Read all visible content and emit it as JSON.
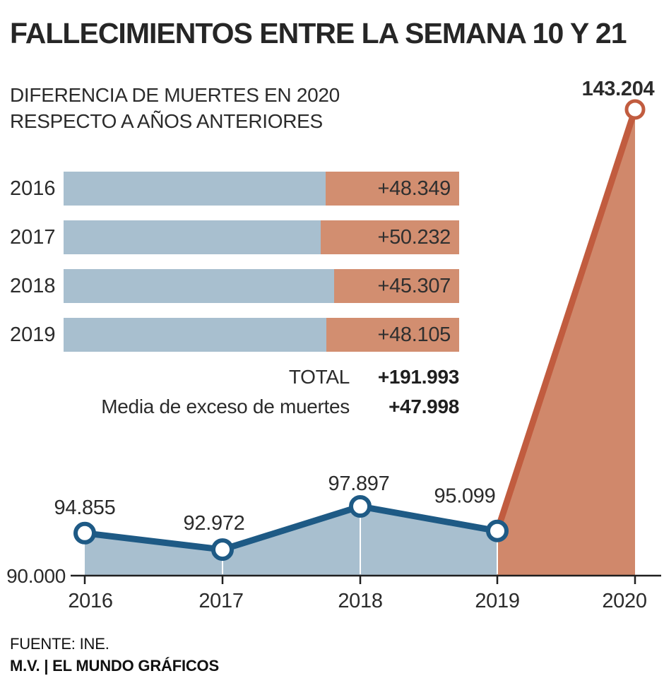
{
  "page": {
    "title": "FALLECIMIENTOS ENTRE LA SEMANA 10 Y 21",
    "subtitle_line1": "DIFERENCIA DE MUERTES EN 2020",
    "subtitle_line2": "RESPECTO A AÑOS ANTERIORES",
    "footer_source": "FUENTE: INE.",
    "footer_credit": "M.V. | EL MUNDO GRÁFICOS"
  },
  "summary": {
    "total_label": "TOTAL",
    "total_value": "+191.993",
    "mean_label": "Media de exceso de muertes",
    "mean_value": "+47.998"
  },
  "colors": {
    "blue_fill": "#a8bfcf",
    "orange_fill_bar": "#d28e70",
    "orange_fill_area": "#d0886b",
    "blue_line": "#1e5a85",
    "orange_line": "#c15c3f",
    "axis": "#1f1f1f",
    "text_dark": "#2b2b2b",
    "white": "#ffffff"
  },
  "chart_data": [
    {
      "type": "bar",
      "subtype": "stacked-horizontal",
      "title": "DIFERENCIA DE MUERTES EN 2020 RESPECTO A AÑOS ANTERIORES",
      "categories": [
        "2016",
        "2017",
        "2018",
        "2019"
      ],
      "series": [
        {
          "name": "muertes-del-año",
          "values": [
            94855,
            92972,
            97897,
            95099
          ],
          "color": "#a8bfcf"
        },
        {
          "name": "exceso-de-muertes-2020",
          "values": [
            48349,
            50232,
            45307,
            48105
          ],
          "labels": [
            "+48.349",
            "+50.232",
            "+45.307",
            "+48.105"
          ],
          "color": "#d28e70"
        }
      ],
      "x_max": 143204,
      "total_label": "TOTAL",
      "total_value": "+191.993",
      "mean_label": "Media de exceso de muertes",
      "mean_value": "+47.998"
    },
    {
      "type": "area",
      "x": [
        2016,
        2017,
        2018,
        2019,
        2020
      ],
      "x_labels": [
        "2016",
        "2017",
        "2018",
        "2019",
        "2020"
      ],
      "values": [
        94855,
        92972,
        97897,
        95099,
        143204
      ],
      "point_labels": [
        "94.855",
        "92.972",
        "97.897",
        "95.099",
        "143.204"
      ],
      "ylim": [
        90000,
        143204
      ],
      "baseline_label": "90.000",
      "grid": "white-vertical-lines-at-years",
      "legend": "none",
      "segments": [
        {
          "range": [
            2016,
            2019
          ],
          "line_color": "#1e5a85",
          "fill": "#a8bfcf"
        },
        {
          "range": [
            2019,
            2020
          ],
          "line_color": "#c15c3f",
          "fill": "#d0886b"
        }
      ]
    }
  ]
}
